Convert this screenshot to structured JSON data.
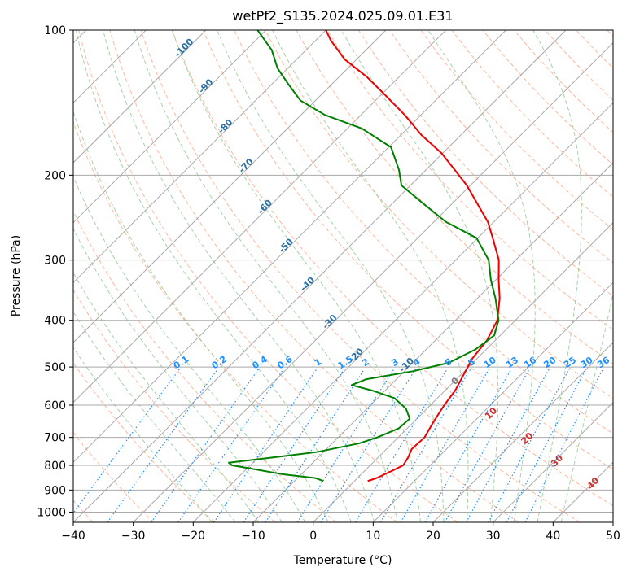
{
  "chart_data": {
    "type": "line",
    "title": "wetPf2_S135.2024.025.09.01.E31",
    "xlabel": "Temperature (°C)",
    "ylabel": "Pressure (hPa)",
    "xlim": [
      -40,
      50
    ],
    "ylim": [
      1050,
      100
    ],
    "y_scale": "log",
    "grid": true,
    "x_ticks": [
      -40,
      -30,
      -20,
      -10,
      0,
      10,
      20,
      30,
      40,
      50
    ],
    "y_ticks": [
      100,
      200,
      300,
      400,
      500,
      600,
      700,
      800,
      900,
      1000
    ],
    "skew_degrees": 45,
    "colors": {
      "temperature": "#ee0000",
      "dewpoint": "#008000",
      "isotherm": "#a9a9a9",
      "isobar": "#a9a9a9",
      "dry_adiabat": "#ffa07a",
      "moist_adiabat": "#90c890",
      "mixing_ratio": "#1e90ff",
      "isotherm_label": "#2a6fa6",
      "adiabat_label": "#d03030",
      "zero_label": "#808080"
    },
    "isotherm_labels": [
      "-100",
      "-90",
      "-80",
      "-70",
      "-60",
      "-50",
      "-40",
      "-30",
      "-20",
      "-10"
    ],
    "mixing_ratio_labels": [
      "0.1",
      "0.2",
      "0.4",
      "0.6",
      "1",
      "1.5",
      "2",
      "3",
      "4",
      "6",
      "8",
      "10",
      "13",
      "16",
      "20",
      "25",
      "30",
      "36"
    ],
    "adiabat_labels": [
      "0",
      "10",
      "20",
      "30",
      "40"
    ],
    "series": [
      {
        "name": "",
        "values": [
          [
            862,
            2.2
          ],
          [
            850,
            3.2
          ],
          [
            820,
            4.6
          ],
          [
            800,
            5.5
          ],
          [
            770,
            5.0
          ],
          [
            740,
            4.2
          ],
          [
            700,
            4.4
          ],
          [
            650,
            3.3
          ],
          [
            600,
            2.3
          ],
          [
            560,
            1.7
          ],
          [
            520,
            0.5
          ],
          [
            480,
            -0.8
          ],
          [
            440,
            -1.4
          ],
          [
            400,
            -3.0
          ],
          [
            360,
            -6.3
          ],
          [
            330,
            -9.5
          ],
          [
            300,
            -12.8
          ],
          [
            270,
            -17.5
          ],
          [
            250,
            -21.0
          ],
          [
            230,
            -25.6
          ],
          [
            210,
            -30.6
          ],
          [
            195,
            -35.2
          ],
          [
            180,
            -40.2
          ],
          [
            165,
            -46.6
          ],
          [
            150,
            -52.7
          ],
          [
            135,
            -60.0
          ],
          [
            125,
            -65.4
          ],
          [
            115,
            -72.0
          ],
          [
            105,
            -77.5
          ],
          [
            100,
            -80.0
          ]
        ]
      },
      {
        "name": "",
        "values": [
          [
            862,
            -5.2
          ],
          [
            850,
            -7.0
          ],
          [
            835,
            -13.0
          ],
          [
            810,
            -20.0
          ],
          [
            800,
            -23.0
          ],
          [
            790,
            -24.0
          ],
          [
            770,
            -17.5
          ],
          [
            750,
            -11.0
          ],
          [
            720,
            -5.5
          ],
          [
            700,
            -3.5
          ],
          [
            670,
            -1.4
          ],
          [
            640,
            -1.2
          ],
          [
            610,
            -3.5
          ],
          [
            580,
            -7.2
          ],
          [
            560,
            -12.0
          ],
          [
            545,
            -16.5
          ],
          [
            530,
            -15.0
          ],
          [
            510,
            -8.5
          ],
          [
            490,
            -4.0
          ],
          [
            460,
            -1.8
          ],
          [
            430,
            -1.0
          ],
          [
            400,
            -2.8
          ],
          [
            360,
            -7.0
          ],
          [
            330,
            -10.8
          ],
          [
            300,
            -14.5
          ],
          [
            270,
            -20.2
          ],
          [
            250,
            -28.0
          ],
          [
            230,
            -34.5
          ],
          [
            210,
            -41.5
          ],
          [
            195,
            -44.5
          ],
          [
            175,
            -49.6
          ],
          [
            160,
            -57.6
          ],
          [
            150,
            -66.0
          ],
          [
            140,
            -72.5
          ],
          [
            130,
            -77.0
          ],
          [
            120,
            -81.7
          ],
          [
            110,
            -85.7
          ],
          [
            100,
            -91.4
          ]
        ]
      }
    ]
  }
}
